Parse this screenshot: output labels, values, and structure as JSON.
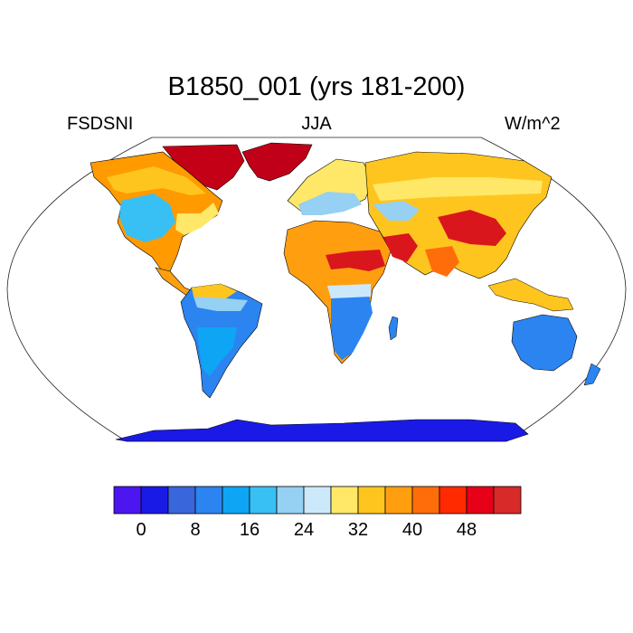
{
  "title": "B1850_001 (yrs 181-200)",
  "left_label": "FSDSNI",
  "center_label": "JJA",
  "right_label": "W/m^2",
  "map": {
    "projection": "Robinson",
    "land_fill_colors": {
      "ocean": "#ffffff",
      "antarctica": "#1a1ae6",
      "tropics_rain": "#2f8fef",
      "subtropics_dry": "#ff9a00",
      "desert_max": "#d9161c",
      "arctic_max": "#c00018",
      "midlatitude": "#ffe066"
    }
  },
  "colorbar": {
    "colors": [
      "#4b16f0",
      "#1a1ae6",
      "#3a66dc",
      "#2b84f0",
      "#0ea5f5",
      "#38c0f5",
      "#96d0f2",
      "#cbe9fa",
      "#ffe868",
      "#ffc51f",
      "#ff9f10",
      "#ff6d0a",
      "#ff2a00",
      "#e60018",
      "#d92a2a"
    ],
    "tick_labels": [
      "0",
      "8",
      "16",
      "24",
      "32",
      "40",
      "48"
    ]
  }
}
